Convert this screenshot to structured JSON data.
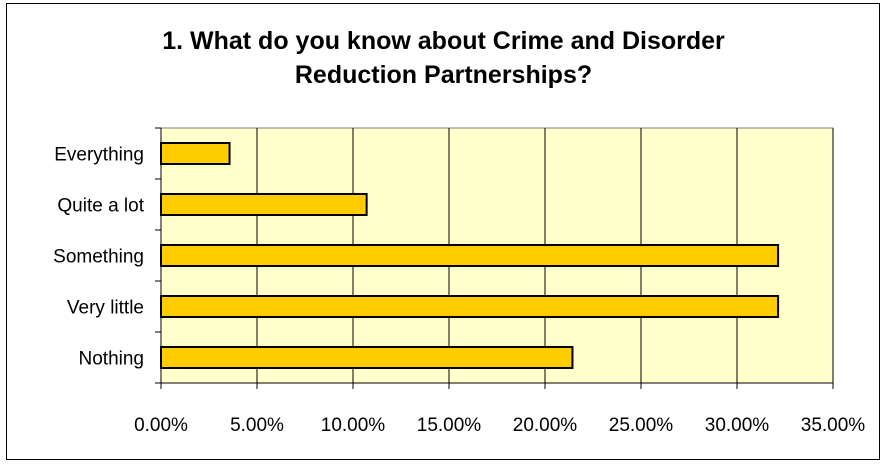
{
  "chart_data": {
    "type": "bar",
    "orientation": "horizontal",
    "title": "1. What do you know about Crime and Disorder Reduction Partnerships?",
    "categories": [
      "Everything",
      "Quite a lot",
      "Something",
      "Very little",
      "Nothing"
    ],
    "values": [
      0.0357,
      0.1071,
      0.3214,
      0.3214,
      0.2143
    ],
    "xlim": [
      0,
      0.35
    ],
    "xticks": [
      0,
      0.05,
      0.1,
      0.15,
      0.2,
      0.25,
      0.3,
      0.35
    ],
    "xtick_labels": [
      "0.00%",
      "5.00%",
      "10.00%",
      "15.00%",
      "20.00%",
      "25.00%",
      "30.00%",
      "35.00%"
    ],
    "grid": true,
    "legend": "none",
    "colors": {
      "bar_fill": "#FFCC00",
      "bar_stroke": "#000000",
      "plot_background": "#FFFFCC",
      "gridline": "#000000"
    }
  }
}
